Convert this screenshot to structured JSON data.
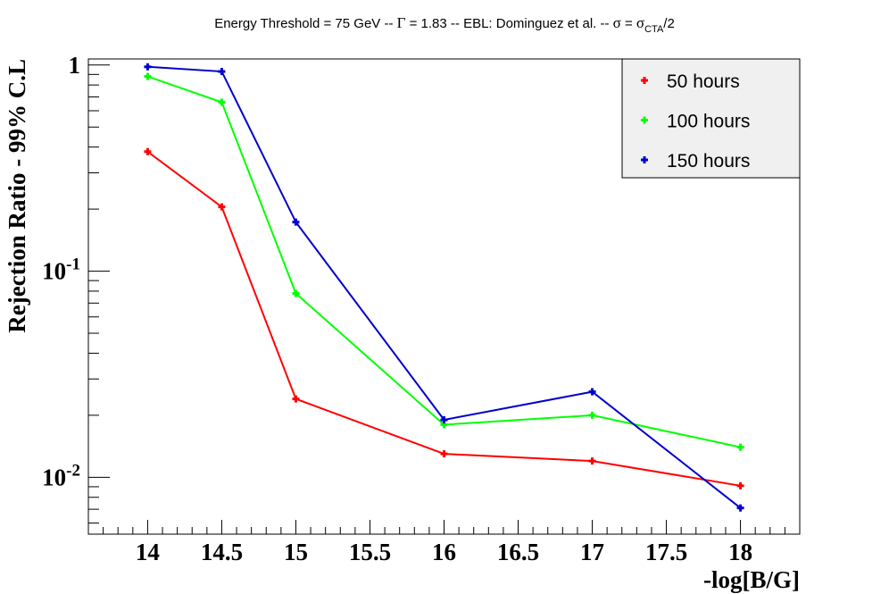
{
  "chart_data": {
    "type": "line",
    "title_parts": {
      "main": "Energy Threshold = 75 GeV -- ",
      "gamma_symbol": "Γ",
      "gamma_eq": " = 1.83 -- EBL: Dominguez et al. -- ",
      "sigma_symbol": "σ",
      "sigma_eq": " = ",
      "sigma_symbol2": "σ",
      "sigma_sub": "CTA",
      "sigma_div": "/2"
    },
    "xlabel": "-log[B/G]",
    "ylabel": "Rejection Ratio - 99% C.L",
    "xlim": [
      13.6,
      18.4
    ],
    "ylim": [
      0.0053,
      1.07
    ],
    "yscale": "log",
    "x_ticks": [
      "14",
      "14.5",
      "15",
      "15.5",
      "16",
      "16.5",
      "17",
      "17.5",
      "18"
    ],
    "y_ticks": [
      {
        "base": "1",
        "exp": "",
        "value": 1
      },
      {
        "base": "10",
        "exp": "-1",
        "value": 0.1
      },
      {
        "base": "10",
        "exp": "-2",
        "value": 0.01
      }
    ],
    "legend_position": "top-right",
    "series": [
      {
        "name": "50 hours",
        "color": "#ff0000",
        "x": [
          14,
          14.5,
          15,
          16,
          17,
          18
        ],
        "y": [
          0.38,
          0.205,
          0.024,
          0.013,
          0.012,
          0.0091
        ]
      },
      {
        "name": "100 hours",
        "color": "#00ff00",
        "x": [
          14,
          14.5,
          15,
          16,
          17,
          18
        ],
        "y": [
          0.88,
          0.66,
          0.078,
          0.018,
          0.02,
          0.014
        ]
      },
      {
        "name": "150 hours",
        "color": "#0000cc",
        "x": [
          14,
          14.5,
          15,
          16,
          17,
          18
        ],
        "y": [
          0.98,
          0.93,
          0.173,
          0.019,
          0.026,
          0.0071
        ]
      }
    ]
  }
}
